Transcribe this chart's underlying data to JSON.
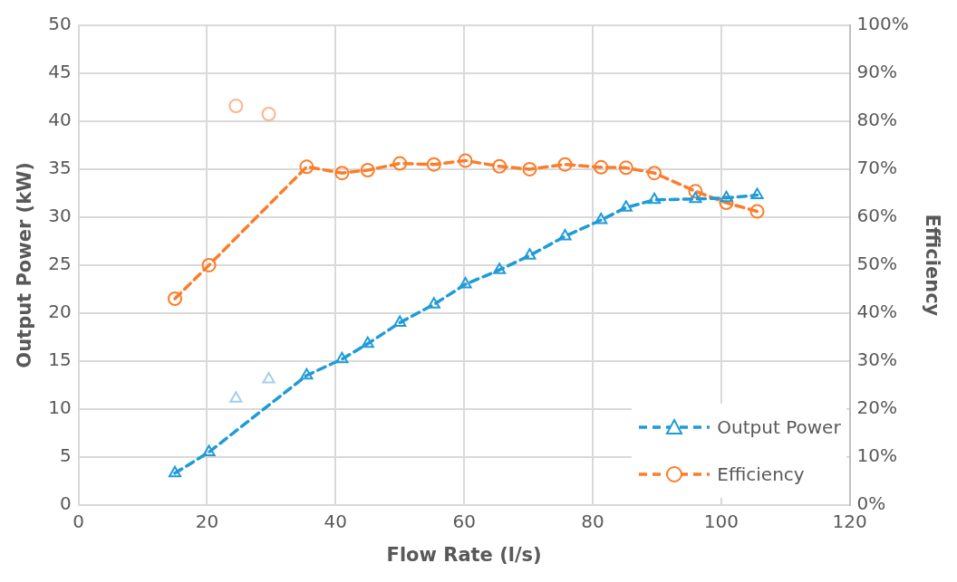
{
  "chart_data": {
    "type": "line",
    "xlabel": "Flow Rate (l/s)",
    "ylabel": "Output Power (kW)",
    "y2label": "Efficiency",
    "xlim": [
      0,
      120
    ],
    "xticks": [
      0,
      20,
      40,
      60,
      80,
      100,
      120
    ],
    "ylim": [
      0,
      50
    ],
    "yticks": [
      0,
      5,
      10,
      15,
      20,
      25,
      30,
      35,
      40,
      45,
      50
    ],
    "y2lim": [
      0,
      100
    ],
    "y2ticks": [
      {
        "value": 0,
        "label": "0%"
      },
      {
        "value": 10,
        "label": "10%"
      },
      {
        "value": 20,
        "label": "20%"
      },
      {
        "value": 30,
        "label": "30%"
      },
      {
        "value": 40,
        "label": "40%"
      },
      {
        "value": 50,
        "label": "50%"
      },
      {
        "value": 60,
        "label": "60%"
      },
      {
        "value": 70,
        "label": "70%"
      },
      {
        "value": 80,
        "label": "80%"
      },
      {
        "value": 90,
        "label": "90%"
      },
      {
        "value": 100,
        "label": "100%"
      }
    ],
    "grid": true,
    "legend": "bottom right",
    "line_style": "dashed",
    "series": [
      {
        "name": "Output Power",
        "color": "#1f9bd7",
        "marker": "triangle",
        "x": [
          15,
          20.3,
          35.5,
          41,
          45,
          50,
          55.3,
          60.2,
          65.5,
          70.2,
          75.7,
          81.3,
          85.2,
          89.6,
          96,
          100.8,
          105.6
        ],
        "values": [
          3.3,
          5.5,
          13.5,
          15.2,
          16.8,
          19,
          20.9,
          23,
          24.5,
          26,
          28,
          29.7,
          31,
          31.8,
          31.9,
          32,
          32.3
        ]
      },
      {
        "name": "Efficiency",
        "color": "#fb7d2a",
        "marker": "circle",
        "axis": "y2",
        "x": [
          15,
          20.3,
          35.5,
          41,
          45,
          50,
          55.3,
          60.2,
          65.5,
          70.2,
          75.7,
          81.3,
          85.2,
          89.6,
          96,
          100.8,
          105.6
        ],
        "values": [
          43,
          50,
          70.5,
          69.2,
          69.8,
          71.2,
          71,
          71.8,
          70.6,
          70,
          71,
          70.4,
          70.3,
          69.2,
          65.4,
          63,
          61.2
        ]
      },
      {
        "type": "scatter",
        "color": "#a3cfec",
        "marker": "triangle",
        "x": [
          24.5,
          29.6
        ],
        "values": [
          11.1,
          13.1
        ]
      },
      {
        "type": "scatter",
        "color": "#fcb58c",
        "marker": "circle",
        "axis": "y2",
        "x": [
          24.5,
          29.6
        ],
        "values": [
          83.2,
          81.5
        ]
      }
    ]
  }
}
